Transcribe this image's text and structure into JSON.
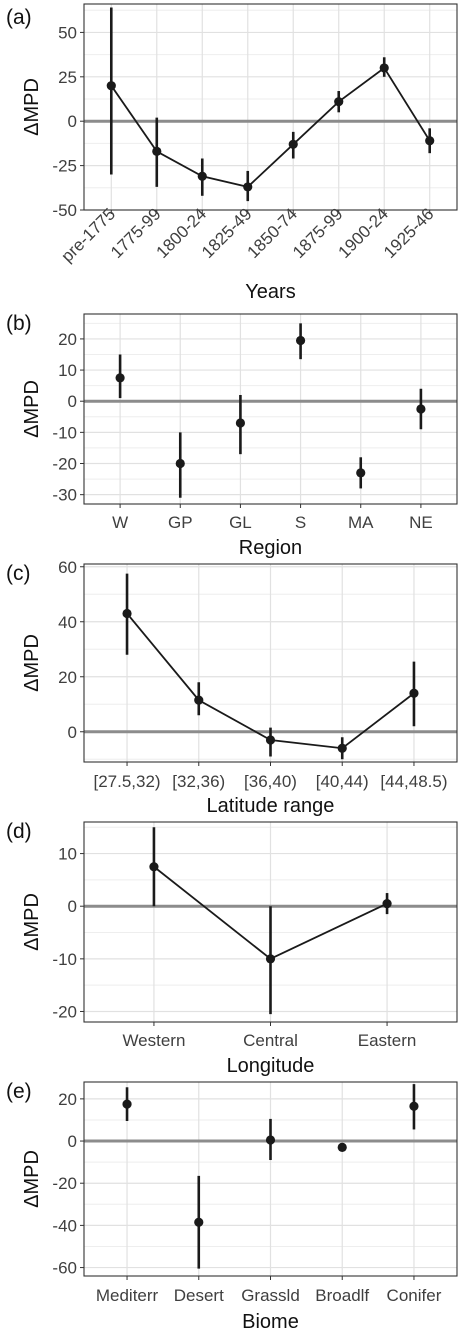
{
  "colors": {
    "background": "#ffffff",
    "major_grid": "#e1e1e1",
    "minor_grid": "#eeeeee",
    "panel_border": "#333333",
    "zero_line": "#8c8c8c",
    "points": "#1a1a1a",
    "tick_text": "#3f3f3f"
  },
  "chart_data": [
    {
      "panel_label": "(a)",
      "type": "line",
      "xlabel": "Years",
      "ylabel": "ΔMPD",
      "categories": [
        "pre-1775",
        "1775-99",
        "1800-24",
        "1825-49",
        "1850-74",
        "1875-99",
        "1900-24",
        "1925-46"
      ],
      "series": [
        {
          "values": [
            20,
            -17,
            -31,
            -37,
            -13,
            11,
            30,
            -11
          ],
          "lower": [
            -30,
            -37,
            -42,
            -45,
            -21,
            5,
            25,
            -18
          ],
          "upper": [
            64,
            2,
            -21,
            -28,
            -6,
            17,
            36,
            -4
          ]
        }
      ],
      "yticks": [
        -50,
        -25,
        0,
        25,
        50
      ],
      "ytick_labels": [
        "-50",
        "-25",
        "0",
        "25",
        "50"
      ],
      "ylim": [
        -50,
        66
      ],
      "line": true,
      "rotate_xticks": true,
      "grid": true,
      "legend": "none",
      "zero_line": 0
    },
    {
      "panel_label": "(b)",
      "type": "scatter",
      "xlabel": "Region",
      "ylabel": "ΔMPD",
      "categories": [
        "W",
        "GP",
        "GL",
        "S",
        "MA",
        "NE"
      ],
      "series": [
        {
          "values": [
            7.5,
            -20,
            -7,
            19.5,
            -23,
            -2.5
          ],
          "lower": [
            1,
            -31,
            -17,
            13.5,
            -28,
            -9
          ],
          "upper": [
            15,
            -10,
            2,
            25,
            -18,
            4
          ]
        }
      ],
      "yticks": [
        -30,
        -20,
        -10,
        0,
        10,
        20
      ],
      "ytick_labels": [
        "-30",
        "-20",
        "-10",
        "0",
        "10",
        "20"
      ],
      "ylim": [
        -33,
        28
      ],
      "line": false,
      "rotate_xticks": false,
      "grid": true,
      "legend": "none",
      "zero_line": 0
    },
    {
      "panel_label": "(c)",
      "type": "line",
      "xlabel": "Latitude range",
      "ylabel": "ΔMPD",
      "categories": [
        "[27.5,32)",
        "[32,36)",
        "[36,40)",
        "[40,44)",
        "[44,48.5)"
      ],
      "series": [
        {
          "values": [
            43,
            11.5,
            -3,
            -6,
            14
          ],
          "lower": [
            28,
            6,
            -9,
            -10,
            2
          ],
          "upper": [
            57.5,
            18,
            1.5,
            -2,
            25.5
          ]
        }
      ],
      "yticks": [
        0,
        20,
        40,
        60
      ],
      "ytick_labels": [
        "0",
        "20",
        "40",
        "60"
      ],
      "ylim": [
        -11,
        61
      ],
      "line": true,
      "rotate_xticks": false,
      "grid": true,
      "legend": "none",
      "zero_line": 0
    },
    {
      "panel_label": "(d)",
      "type": "line",
      "xlabel": "Longitude",
      "ylabel": "ΔMPD",
      "categories": [
        "Western",
        "Central",
        "Eastern"
      ],
      "series": [
        {
          "values": [
            7.5,
            -10,
            0.5
          ],
          "lower": [
            0,
            -20.5,
            -1.5
          ],
          "upper": [
            15,
            0,
            2.5
          ]
        }
      ],
      "yticks": [
        -20,
        -10,
        0,
        10
      ],
      "ytick_labels": [
        "-20",
        "-10",
        "0",
        "10"
      ],
      "ylim": [
        -22,
        16
      ],
      "line": true,
      "rotate_xticks": false,
      "grid": true,
      "legend": "none",
      "zero_line": 0
    },
    {
      "panel_label": "(e)",
      "type": "scatter",
      "xlabel": "Biome",
      "ylabel": "ΔMPD",
      "categories": [
        "Mediterr",
        "Desert",
        "Grassld",
        "Broadlf",
        "Conifer"
      ],
      "series": [
        {
          "values": [
            17.5,
            -38.5,
            0.5,
            -3,
            16.5
          ],
          "lower": [
            9.5,
            -60.5,
            -9,
            -4,
            5.5
          ],
          "upper": [
            25.5,
            -16.5,
            10.5,
            -2,
            27
          ]
        }
      ],
      "yticks": [
        -60,
        -40,
        -20,
        0,
        20
      ],
      "ytick_labels": [
        "-60",
        "-40",
        "-20",
        "0",
        "20"
      ],
      "ylim": [
        -64,
        28
      ],
      "line": false,
      "rotate_xticks": false,
      "grid": true,
      "legend": "none",
      "zero_line": 0
    }
  ]
}
